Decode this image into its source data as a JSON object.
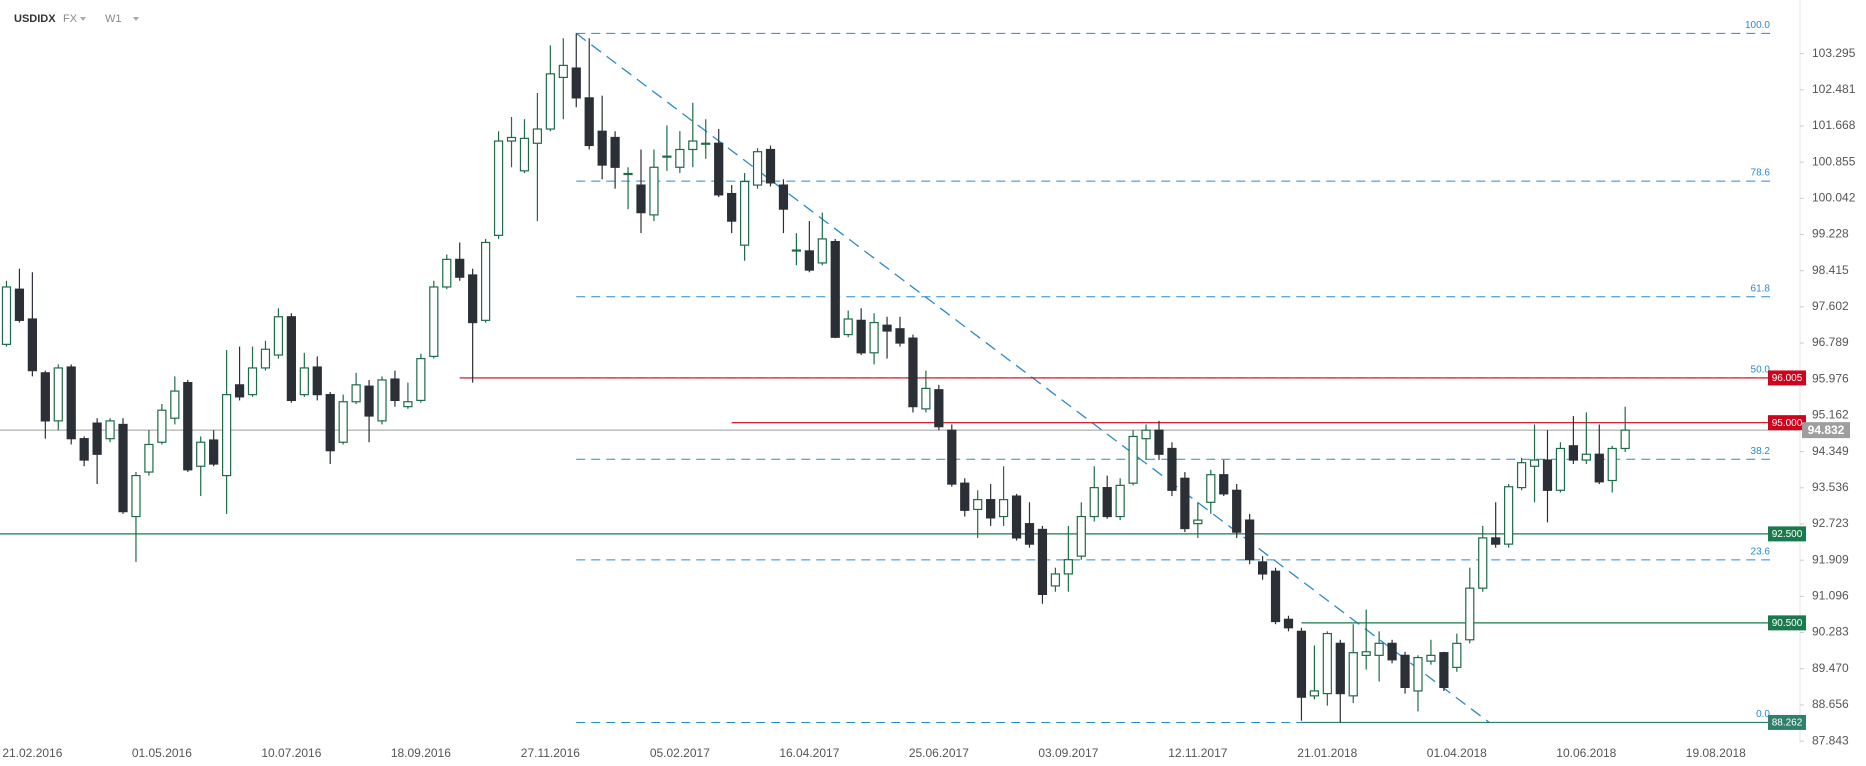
{
  "header": {
    "symbol": "USDIDX",
    "market": "FX",
    "timeframe": "W1"
  },
  "chart_data": {
    "type": "candlestick",
    "categories": [
      null,
      null,
      "21.02.2016",
      null,
      null,
      null,
      null,
      null,
      null,
      null,
      null,
      null,
      "01.05.2016",
      null,
      null,
      null,
      null,
      null,
      null,
      null,
      null,
      null,
      "10.07.2016",
      null,
      null,
      null,
      null,
      null,
      null,
      null,
      null,
      null,
      "18.09.2016",
      null,
      null,
      null,
      null,
      null,
      null,
      null,
      null,
      null,
      "27.11.2016",
      null,
      null,
      null,
      null,
      null,
      null,
      null,
      null,
      null,
      "05.02.2017",
      null,
      null,
      null,
      null,
      null,
      null,
      null,
      null,
      null,
      "16.04.2017",
      null,
      null,
      null,
      null,
      null,
      null,
      null,
      null,
      null,
      "25.06.2017",
      null,
      null,
      null,
      null,
      null,
      null,
      null,
      null,
      null,
      "03.09.2017",
      null,
      null,
      null,
      null,
      null,
      null,
      null,
      null,
      null,
      "12.11.2017",
      null,
      null,
      null,
      null,
      null,
      null,
      null,
      null,
      null,
      "21.01.2018",
      null,
      null,
      null,
      null,
      null,
      null,
      null,
      null,
      null,
      "01.04.2018",
      null,
      null,
      null,
      null,
      null,
      null,
      null,
      null,
      null,
      "10.06.2018",
      null,
      null,
      null,
      null,
      null,
      null,
      null,
      null,
      null,
      "19.08.2018",
      null,
      null,
      null,
      null,
      null,
      null
    ],
    "open": [
      96.76,
      98.0,
      97.33,
      96.12,
      95.04,
      96.25,
      94.64,
      94.99,
      94.64,
      94.96,
      92.89,
      93.89,
      94.56,
      95.1,
      95.9,
      94.02,
      94.61,
      93.81,
      95.85,
      95.63,
      96.23,
      96.52,
      97.38,
      95.63,
      96.25,
      95.63,
      94.56,
      95.47,
      95.82,
      95.04,
      95.98,
      95.36,
      95.5,
      96.49,
      98.05,
      98.67,
      98.32,
      97.3,
      99.21,
      101.33,
      100.66,
      101.28,
      101.6,
      102.76,
      102.97,
      102.3,
      101.55,
      101.41,
      100.58,
      100.34,
      99.67,
      100.97,
      100.74,
      101.14,
      101.27,
      101.28,
      100.15,
      98.99,
      100.34,
      101.14,
      100.34,
      98.86,
      98.86,
      98.59,
      99.07,
      96.98,
      97.3,
      96.57,
      97.19,
      97.11,
      96.9,
      95.31,
      95.74,
      94.83,
      93.64,
      93.05,
      93.27,
      92.89,
      93.35,
      92.73,
      92.6,
      91.33,
      91.6,
      92.0,
      92.89,
      93.54,
      92.89,
      93.64,
      94.64,
      94.83,
      94.42,
      93.75,
      92.73,
      93.21,
      93.83,
      93.48,
      92.81,
      91.87,
      91.66,
      90.58,
      90.31,
      88.86,
      88.91,
      90.04,
      88.86,
      89.77,
      89.77,
      90.04,
      89.77,
      88.97,
      89.64,
      89.83,
      89.5,
      90.12,
      91.28,
      92.41,
      92.27,
      93.54,
      94.02,
      94.16,
      93.48,
      94.48,
      94.16,
      94.29,
      93.7,
      94.42,
      null,
      null,
      null,
      null,
      null,
      null,
      null,
      null,
      null,
      null,
      null,
      null,
      null
    ],
    "high": [
      98.19,
      98.46,
      98.38,
      96.17,
      96.31,
      96.31,
      94.69,
      95.1,
      95.1,
      95.1,
      93.89,
      94.83,
      95.42,
      96.04,
      95.96,
      94.69,
      94.83,
      96.63,
      96.71,
      96.71,
      96.84,
      97.57,
      97.46,
      96.57,
      96.49,
      95.69,
      95.63,
      96.12,
      95.96,
      96.04,
      96.17,
      95.9,
      96.55,
      98.19,
      98.78,
      99.05,
      98.46,
      99.13,
      101.55,
      101.87,
      101.82,
      102.41,
      103.48,
      103.64,
      103.75,
      103.64,
      102.35,
      101.55,
      100.74,
      101.14,
      101.14,
      101.68,
      101.55,
      102.19,
      101.82,
      101.6,
      100.34,
      100.61,
      101.17,
      101.23,
      100.47,
      99.26,
      99.53,
      99.72,
      99.13,
      97.52,
      97.57,
      97.46,
      97.38,
      97.38,
      96.98,
      96.17,
      95.85,
      94.96,
      93.75,
      93.48,
      93.62,
      94.02,
      93.4,
      93.21,
      92.68,
      91.74,
      92.68,
      93.21,
      94.02,
      93.81,
      93.75,
      94.83,
      94.96,
      95.04,
      94.56,
      93.89,
      93.21,
      93.94,
      94.16,
      93.62,
      92.95,
      92.0,
      91.74,
      90.66,
      90.39,
      89.99,
      90.31,
      90.12,
      90.47,
      90.8,
      90.31,
      90.12,
      89.85,
      89.77,
      90.12,
      89.85,
      90.26,
      91.74,
      92.68,
      93.21,
      93.62,
      94.21,
      94.96,
      94.83,
      94.56,
      95.15,
      95.23,
      94.96,
      94.48,
      95.36,
      null,
      null,
      null,
      null,
      null,
      null,
      null,
      null,
      null,
      null,
      null,
      null,
      null
    ],
    "low": [
      96.71,
      97.25,
      96.04,
      94.64,
      94.83,
      94.51,
      94.02,
      93.62,
      94.56,
      92.95,
      91.87,
      93.81,
      94.51,
      94.96,
      93.89,
      93.35,
      94.02,
      92.95,
      95.5,
      95.58,
      96.17,
      96.44,
      95.45,
      95.58,
      95.5,
      94.07,
      94.51,
      95.42,
      94.56,
      94.96,
      95.36,
      95.31,
      95.45,
      96.44,
      98.0,
      98.19,
      95.9,
      97.25,
      99.13,
      100.74,
      100.61,
      99.53,
      101.55,
      101.82,
      102.09,
      101.14,
      100.47,
      100.26,
      99.8,
      99.26,
      99.53,
      100.66,
      100.61,
      100.74,
      100.93,
      100.07,
      99.26,
      98.64,
      100.26,
      100.31,
      99.26,
      98.54,
      98.38,
      98.54,
      96.9,
      96.92,
      96.52,
      96.31,
      96.44,
      96.71,
      95.23,
      95.23,
      94.83,
      93.56,
      92.89,
      92.41,
      92.68,
      92.68,
      92.35,
      92.19,
      90.93,
      91.2,
      91.2,
      91.92,
      92.78,
      92.84,
      92.81,
      93.59,
      94.16,
      94.16,
      93.35,
      92.54,
      92.41,
      92.95,
      93.35,
      92.41,
      91.82,
      91.47,
      90.47,
      90.31,
      88.3,
      88.78,
      88.64,
      88.262,
      88.7,
      89.45,
      89.18,
      89.59,
      88.91,
      88.51,
      89.56,
      88.97,
      89.4,
      90.04,
      91.2,
      92.19,
      92.19,
      93.48,
      93.21,
      92.76,
      93.43,
      94.07,
      94.07,
      93.62,
      93.43,
      94.34,
      null,
      null,
      null,
      null,
      null,
      null,
      null,
      null,
      null,
      null,
      null,
      null,
      null
    ],
    "close": [
      98.05,
      97.3,
      96.17,
      95.04,
      96.23,
      94.64,
      94.16,
      94.29,
      95.04,
      93.0,
      93.81,
      94.51,
      95.28,
      95.71,
      93.94,
      94.56,
      94.07,
      95.63,
      95.58,
      96.23,
      96.65,
      97.38,
      95.5,
      96.23,
      95.63,
      94.37,
      95.47,
      95.85,
      95.15,
      95.96,
      95.5,
      95.47,
      96.44,
      98.05,
      98.67,
      98.27,
      97.25,
      99.05,
      101.33,
      101.41,
      101.39,
      101.6,
      102.84,
      103.03,
      102.3,
      101.23,
      100.79,
      100.74,
      100.6,
      99.72,
      100.74,
      100.99,
      101.14,
      101.33,
      101.28,
      100.12,
      99.53,
      100.42,
      101.09,
      100.39,
      99.8,
      98.88,
      98.43,
      99.13,
      96.92,
      97.33,
      96.57,
      97.25,
      97.06,
      96.79,
      95.36,
      95.77,
      94.91,
      93.62,
      93.03,
      93.27,
      92.86,
      93.27,
      92.41,
      92.27,
      91.14,
      91.6,
      91.92,
      92.89,
      93.54,
      92.89,
      93.59,
      94.69,
      94.83,
      94.29,
      93.48,
      92.62,
      92.81,
      93.83,
      93.4,
      92.54,
      91.92,
      91.6,
      90.53,
      90.39,
      88.83,
      88.97,
      90.26,
      88.91,
      89.83,
      89.85,
      90.04,
      89.67,
      89.05,
      89.72,
      89.77,
      89.05,
      90.04,
      91.28,
      92.41,
      92.27,
      93.56,
      94.1,
      94.16,
      93.48,
      94.42,
      94.16,
      94.29,
      93.67,
      94.42,
      94.832,
      null,
      null,
      null,
      null,
      null,
      null,
      null,
      null,
      null,
      null,
      null,
      null,
      null
    ],
    "up_color": "#ffffff",
    "up_border": "#1e6b47",
    "down_color": "#2b2f36",
    "last_price_color": "#9e9e9e",
    "ylim": [
      87.8,
      104.5
    ],
    "yticks": [
      103.295,
      102.481,
      101.668,
      100.855,
      100.042,
      99.228,
      98.415,
      97.602,
      96.789,
      95.976,
      95.162,
      94.349,
      93.536,
      92.723,
      91.909,
      91.096,
      90.283,
      {
        "value": 89.47,
        "label": "89.470"
      },
      88.656,
      87.843
    ],
    "levels": [
      {
        "value": 96.005,
        "color": "#d0021b",
        "start": 35
      },
      {
        "value": 95,
        "label": "95.000",
        "color": "#d0021b",
        "start": 56
      },
      {
        "value": 92.5,
        "label": "92.500",
        "color": "#1b7a4d"
      },
      {
        "value": 90.5,
        "label": "90.500",
        "color": "#1b7a4d",
        "start": 100
      },
      {
        "value": 88.262,
        "color": "#2f7f6a",
        "start": 100
      }
    ],
    "fibonacci": {
      "start": 44,
      "color": "#2a8ac8",
      "levels": [
        {
          "value": 103.75,
          "label": "100.0"
        },
        {
          "value": 100.43,
          "label": "78.6"
        },
        {
          "value": 97.83,
          "label": "61.8"
        },
        {
          "value": 96.006,
          "label": "50.0"
        },
        {
          "value": 94.178,
          "label": "38.2"
        },
        {
          "value": 91.917,
          "label": "23.6"
        },
        {
          "value": 88.262,
          "label": "0.0"
        }
      ]
    },
    "trendline": {
      "x": [
        44,
        114.5
      ],
      "y": [
        103.75,
        88.262
      ],
      "color": "#2a8ac8"
    }
  }
}
